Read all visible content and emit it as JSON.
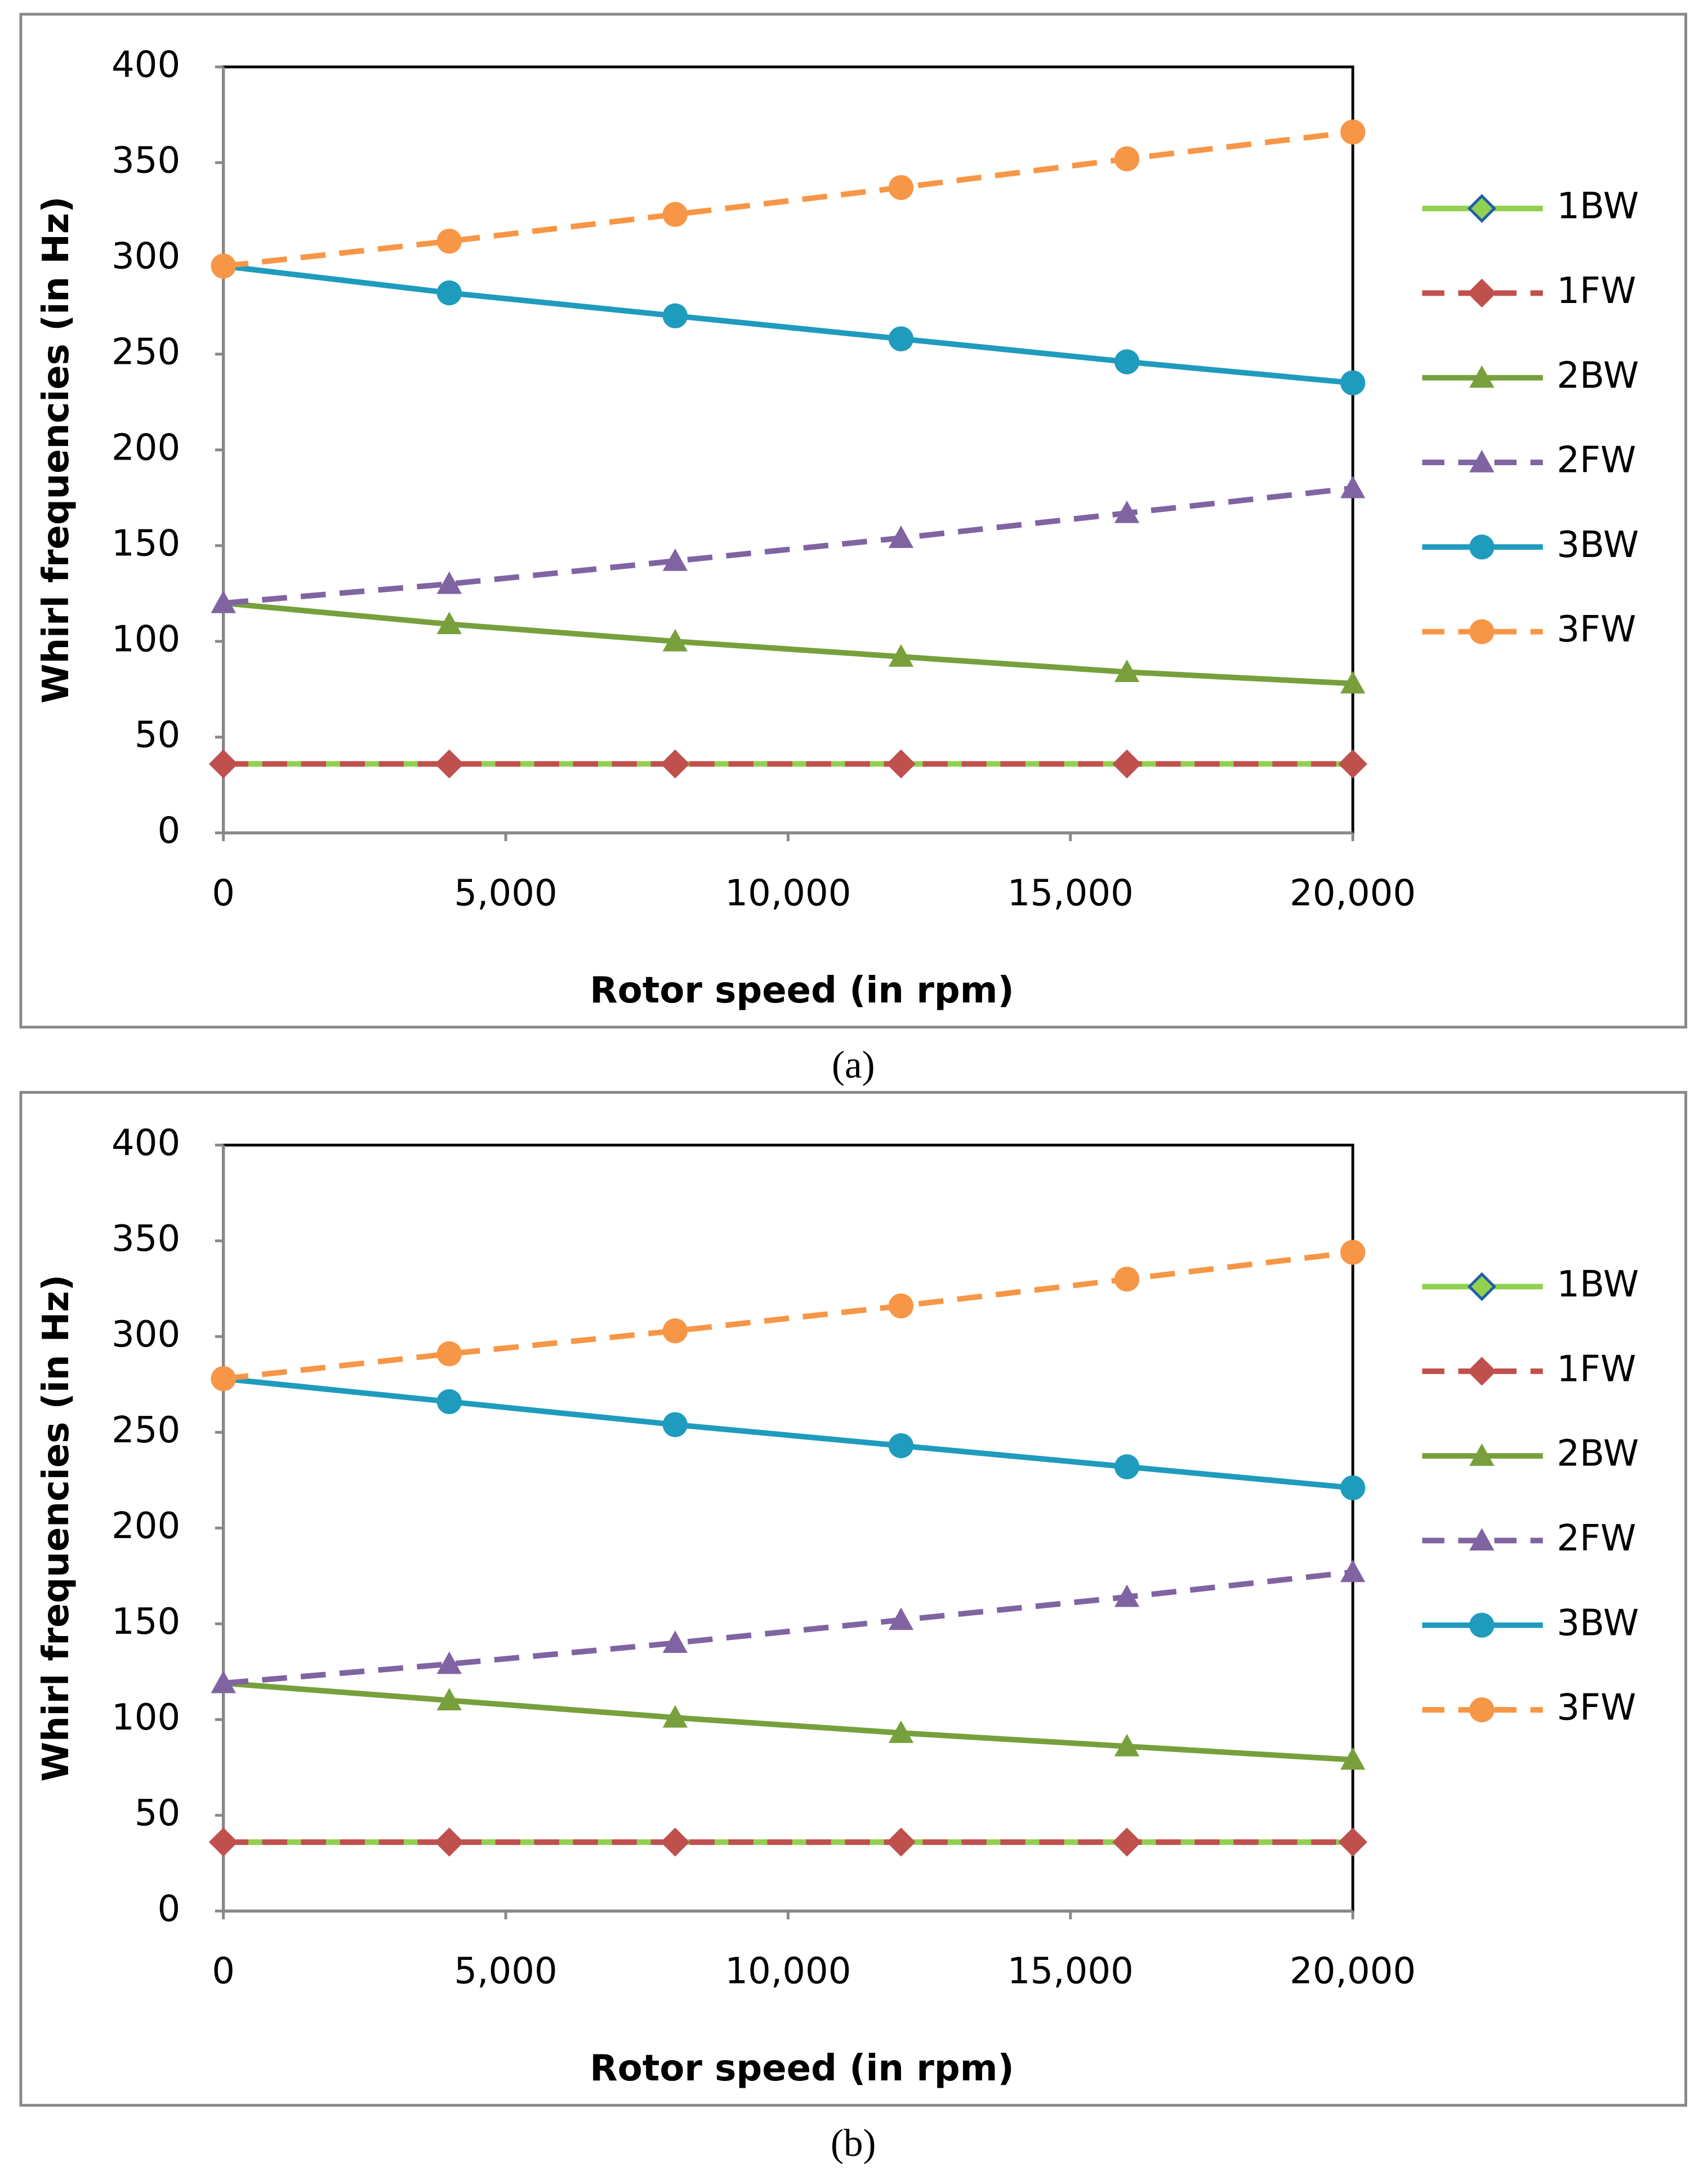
{
  "chart_data": [
    {
      "type": "line",
      "caption": "(a)",
      "xlabel": "Rotor speed (in rpm)",
      "ylabel": "Whirl frequencies (in Hz)",
      "x": [
        0,
        4000,
        8000,
        12000,
        16000,
        20000
      ],
      "xlim": [
        0,
        20000
      ],
      "xticks": [
        0,
        {
          "value": 5000,
          "label": "5,000"
        },
        {
          "value": 10000,
          "label": "10,000"
        },
        {
          "value": 15000,
          "label": "15,000"
        },
        {
          "value": 20000,
          "label": "20,000"
        }
      ],
      "ylim": [
        0,
        400
      ],
      "yticks": [
        0,
        50,
        100,
        150,
        200,
        250,
        300,
        350,
        400
      ],
      "grid": false,
      "legend": "right",
      "series": [
        {
          "name": "1BW",
          "color": "#92d050",
          "dashed": false,
          "marker": "diamond",
          "values": [
            36,
            36,
            36,
            36,
            36,
            36
          ]
        },
        {
          "name": "1FW",
          "color": "#c0504d",
          "dashed": true,
          "marker": "diamond",
          "values": [
            36,
            36,
            36,
            36,
            36,
            36
          ]
        },
        {
          "name": "2BW",
          "color": "#77a03c",
          "dashed": false,
          "marker": "triangle",
          "values": [
            120,
            109,
            100,
            92,
            84,
            78
          ]
        },
        {
          "name": "2FW",
          "color": "#8064a2",
          "dashed": true,
          "marker": "triangle",
          "values": [
            120,
            130,
            142,
            154,
            167,
            180
          ]
        },
        {
          "name": "3BW",
          "color": "#1f9bbd",
          "dashed": false,
          "marker": "circle",
          "values": [
            296,
            282,
            270,
            258,
            246,
            235
          ]
        },
        {
          "name": "3FW",
          "color": "#f79646",
          "dashed": true,
          "marker": "circle",
          "values": [
            296,
            309,
            323,
            337,
            352,
            366
          ]
        }
      ]
    },
    {
      "type": "line",
      "caption": "(b)",
      "xlabel": "Rotor speed (in rpm)",
      "ylabel": "Whirl frequencies (in Hz)",
      "x": [
        0,
        4000,
        8000,
        12000,
        16000,
        20000
      ],
      "xlim": [
        0,
        20000
      ],
      "xticks": [
        0,
        {
          "value": 5000,
          "label": "5,000"
        },
        {
          "value": 10000,
          "label": "10,000"
        },
        {
          "value": 15000,
          "label": "15,000"
        },
        {
          "value": 20000,
          "label": "20,000"
        }
      ],
      "ylim": [
        0,
        400
      ],
      "yticks": [
        0,
        50,
        100,
        150,
        200,
        250,
        300,
        350,
        400
      ],
      "grid": false,
      "legend": "right",
      "series": [
        {
          "name": "1BW",
          "color": "#92d050",
          "dashed": false,
          "marker": "diamond",
          "values": [
            36,
            36,
            36,
            36,
            36,
            36
          ]
        },
        {
          "name": "1FW",
          "color": "#c0504d",
          "dashed": true,
          "marker": "diamond",
          "values": [
            36,
            36,
            36,
            36,
            36,
            36
          ]
        },
        {
          "name": "2BW",
          "color": "#77a03c",
          "dashed": false,
          "marker": "triangle",
          "values": [
            119,
            110,
            101,
            93,
            86,
            79
          ]
        },
        {
          "name": "2FW",
          "color": "#8064a2",
          "dashed": true,
          "marker": "triangle",
          "values": [
            119,
            129,
            140,
            152,
            164,
            177
          ]
        },
        {
          "name": "3BW",
          "color": "#1f9bbd",
          "dashed": false,
          "marker": "circle",
          "values": [
            278,
            266,
            254,
            243,
            232,
            221
          ]
        },
        {
          "name": "3FW",
          "color": "#f79646",
          "dashed": true,
          "marker": "circle",
          "values": [
            278,
            291,
            303,
            316,
            330,
            344
          ]
        }
      ]
    }
  ]
}
